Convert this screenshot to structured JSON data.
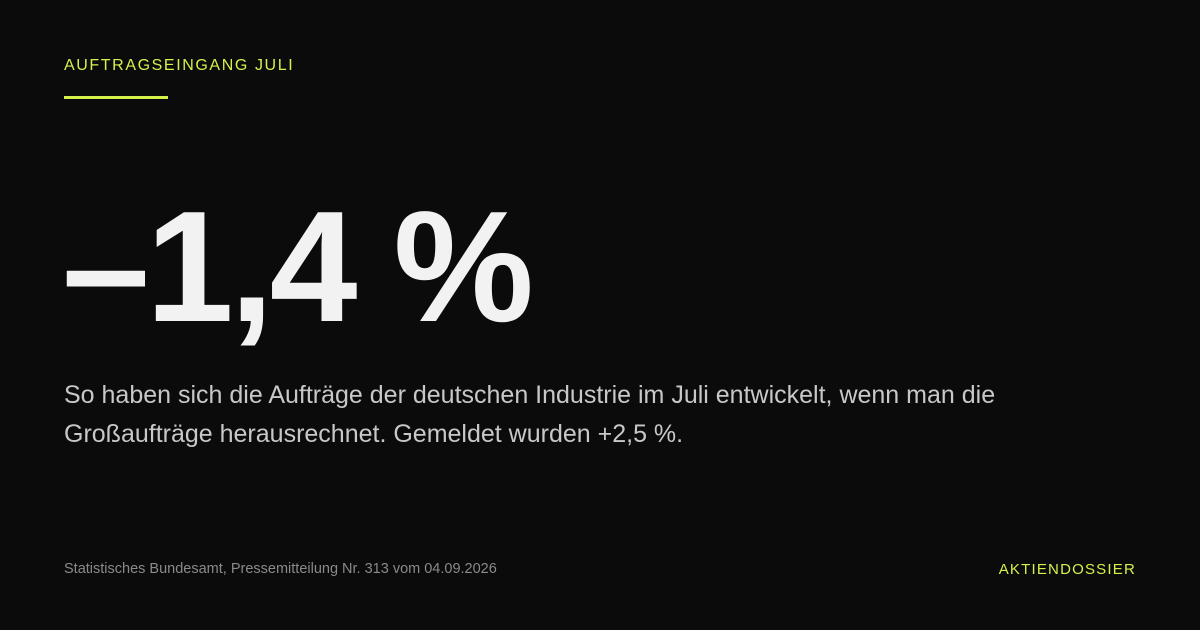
{
  "kicker": "AUFTRAGSEINGANG JULI",
  "headline": "–1,4 %",
  "description": "So haben sich die Aufträge der deutschen Industrie im Juli entwickelt, wenn man die Großaufträge herausrechnet. Gemeldet wurden +2,5 %.",
  "source": "Statistisches Bundesamt, Pressemitteilung Nr. 313 vom 04.09.2026",
  "brand": "AKTIENDOSSIER"
}
